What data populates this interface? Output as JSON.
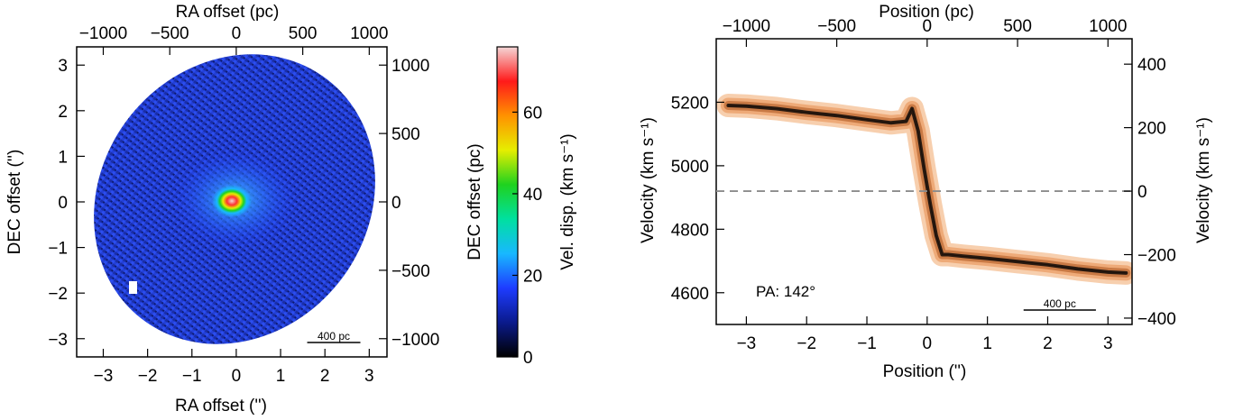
{
  "chart_data": [
    {
      "type": "heatmap",
      "xlabel": "RA offset ('')",
      "ylabel": "DEC offset ('')",
      "top_xlabel": "RA offset (pc)",
      "right_ylabel": "DEC offset (pc)",
      "xlim": [
        -3.6,
        3.4
      ],
      "ylim": [
        -3.4,
        3.4
      ],
      "x_ticks": [
        -3,
        -2,
        -1,
        0,
        1,
        2,
        3
      ],
      "y_ticks": [
        -3,
        -2,
        -1,
        0,
        1,
        2,
        3
      ],
      "top_ticks_pc": [
        -1000,
        -500,
        0,
        500,
        1000
      ],
      "right_ticks_pc": [
        1000,
        500,
        0,
        -500,
        -1000
      ],
      "arcsec_per_kpc": 3.0,
      "scale_bar_label": "400 pc",
      "scale_bar_arcsec": [
        1.6,
        2.8
      ],
      "grid": false,
      "map_description_values": {
        "typical_dispersion": 12,
        "peak_dispersion": 70,
        "peak_position": [
          0.0,
          0.0
        ]
      }
    },
    {
      "type": "colorbar",
      "label": "Vel. disp. (km s⁻¹)",
      "range": [
        0,
        76
      ],
      "ticks": [
        0,
        20,
        40,
        60
      ],
      "colormap": [
        "#000000",
        "#0a1a8c",
        "#1e3cff",
        "#18b8ff",
        "#00e0a0",
        "#1fd21f",
        "#e6ee00",
        "#ff9200",
        "#ff1a1a",
        "#f4d6d6"
      ]
    },
    {
      "type": "contour",
      "xlabel": "Position ('')",
      "ylabel": "Velocity (km s⁻¹)",
      "top_xlabel": "Position (pc)",
      "right_ylabel": "Velocity (km s⁻¹)",
      "xlim": [
        -3.5,
        3.4
      ],
      "ylim": [
        4500,
        5400
      ],
      "x_ticks": [
        -3,
        -2,
        -1,
        0,
        1,
        2,
        3
      ],
      "y_ticks": [
        4600,
        4800,
        5000,
        5200
      ],
      "top_ticks_pc": [
        -1000,
        -500,
        0,
        500,
        1000
      ],
      "right_ticks_kms": [
        400,
        200,
        0,
        -200,
        -400
      ],
      "systemic_velocity": 4920,
      "annotation": "PA: 142°",
      "scale_bar_label": "400 pc",
      "scale_bar_arcsec": [
        1.6,
        2.8
      ],
      "curve": {
        "x": [
          -3.3,
          -3.0,
          -2.5,
          -2.0,
          -1.5,
          -1.0,
          -0.6,
          -0.35,
          -0.25,
          -0.15,
          -0.05,
          0.05,
          0.15,
          0.25,
          0.35,
          0.6,
          1.0,
          1.5,
          2.0,
          2.5,
          3.0,
          3.3
        ],
        "y": [
          5190,
          5188,
          5180,
          5168,
          5158,
          5145,
          5135,
          5140,
          5180,
          5110,
          4990,
          4880,
          4780,
          4720,
          4720,
          4715,
          4708,
          4698,
          4688,
          4675,
          4665,
          4662
        ]
      },
      "grid": false
    }
  ]
}
